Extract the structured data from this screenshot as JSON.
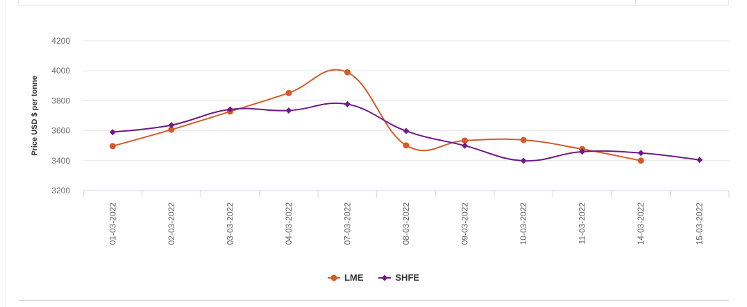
{
  "chart_data": {
    "type": "line",
    "categories": [
      "01-03-2022",
      "02-03-2022",
      "03-03-2022",
      "04-03-2022",
      "07-03-2022",
      "08-03-2022",
      "09-03-2022",
      "10-03-2022",
      "11-03-2022",
      "14-03-2022",
      "15-03-2022"
    ],
    "ylabel": "Price USD $ per tonne",
    "ylim": [
      3200,
      4200
    ],
    "yticks": [
      3200,
      3400,
      3600,
      3800,
      4000,
      4200
    ],
    "grid": true,
    "legend_position": "bottom-center",
    "series": [
      {
        "name": "LME",
        "color": "#d45a2a",
        "marker": "circle",
        "values": [
          3497,
          3607,
          3728,
          3852,
          3990,
          3502,
          3534,
          3538,
          3477,
          3400,
          null
        ]
      },
      {
        "name": "SHFE",
        "color": "#6e1a87",
        "marker": "diamond",
        "values": [
          3590,
          3637,
          3742,
          3735,
          3777,
          3598,
          3500,
          3399,
          3460,
          3451,
          3405
        ]
      }
    ]
  }
}
